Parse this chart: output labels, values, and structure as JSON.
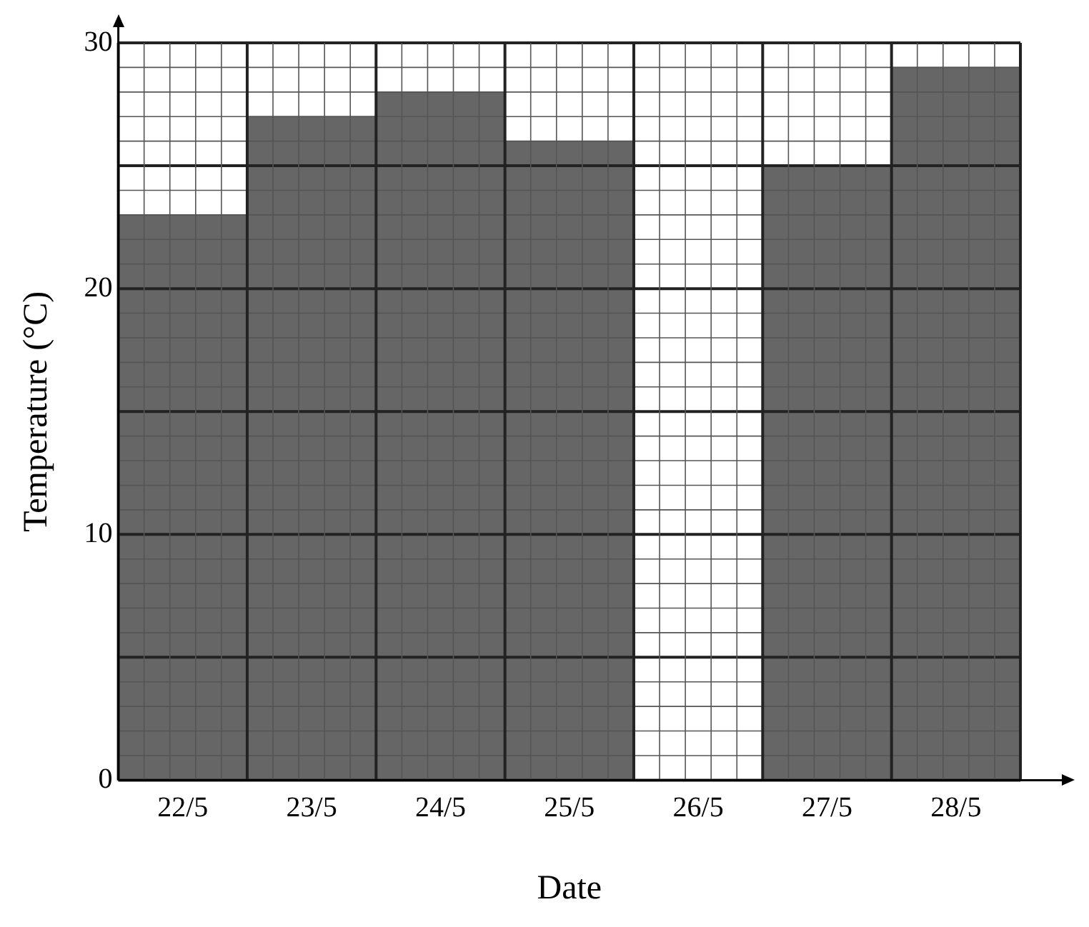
{
  "chart_data": {
    "type": "bar",
    "xlabel": "Date",
    "ylabel": "Temperature (°C)",
    "categories": [
      "22/5",
      "23/5",
      "24/5",
      "25/5",
      "26/5",
      "27/5",
      "28/5"
    ],
    "values": [
      23,
      27,
      28,
      26,
      null,
      25,
      29
    ],
    "color": "#666666",
    "ylim": [
      0,
      30
    ],
    "yticks": [
      0,
      {
        "value": 1,
        "label": null
      },
      {
        "value": 2,
        "label": null
      },
      {
        "value": 3,
        "label": null
      },
      {
        "value": 4,
        "label": null
      },
      {
        "value": 5,
        "label": null
      },
      {
        "value": 6,
        "label": null
      },
      {
        "value": 7,
        "label": null
      },
      {
        "value": 8,
        "label": null
      },
      {
        "value": 9,
        "label": null
      },
      10,
      {
        "value": 11,
        "label": null
      },
      {
        "value": 12,
        "label": null
      },
      {
        "value": 13,
        "label": null
      },
      {
        "value": 14,
        "label": null
      },
      {
        "value": 15,
        "label": null
      },
      {
        "value": 16,
        "label": null
      },
      {
        "value": 17,
        "label": null
      },
      {
        "value": 18,
        "label": null
      },
      {
        "value": 19,
        "label": null
      },
      20,
      {
        "value": 21,
        "label": null
      },
      {
        "value": 22,
        "label": null
      },
      {
        "value": 23,
        "label": null
      },
      {
        "value": 24,
        "label": null
      },
      {
        "value": 25,
        "label": null
      },
      {
        "value": 26,
        "label": null
      },
      {
        "value": 27,
        "label": null
      },
      {
        "value": 28,
        "label": null
      },
      {
        "value": 29,
        "label": null
      },
      30
    ],
    "grid": true,
    "legend": false
  }
}
